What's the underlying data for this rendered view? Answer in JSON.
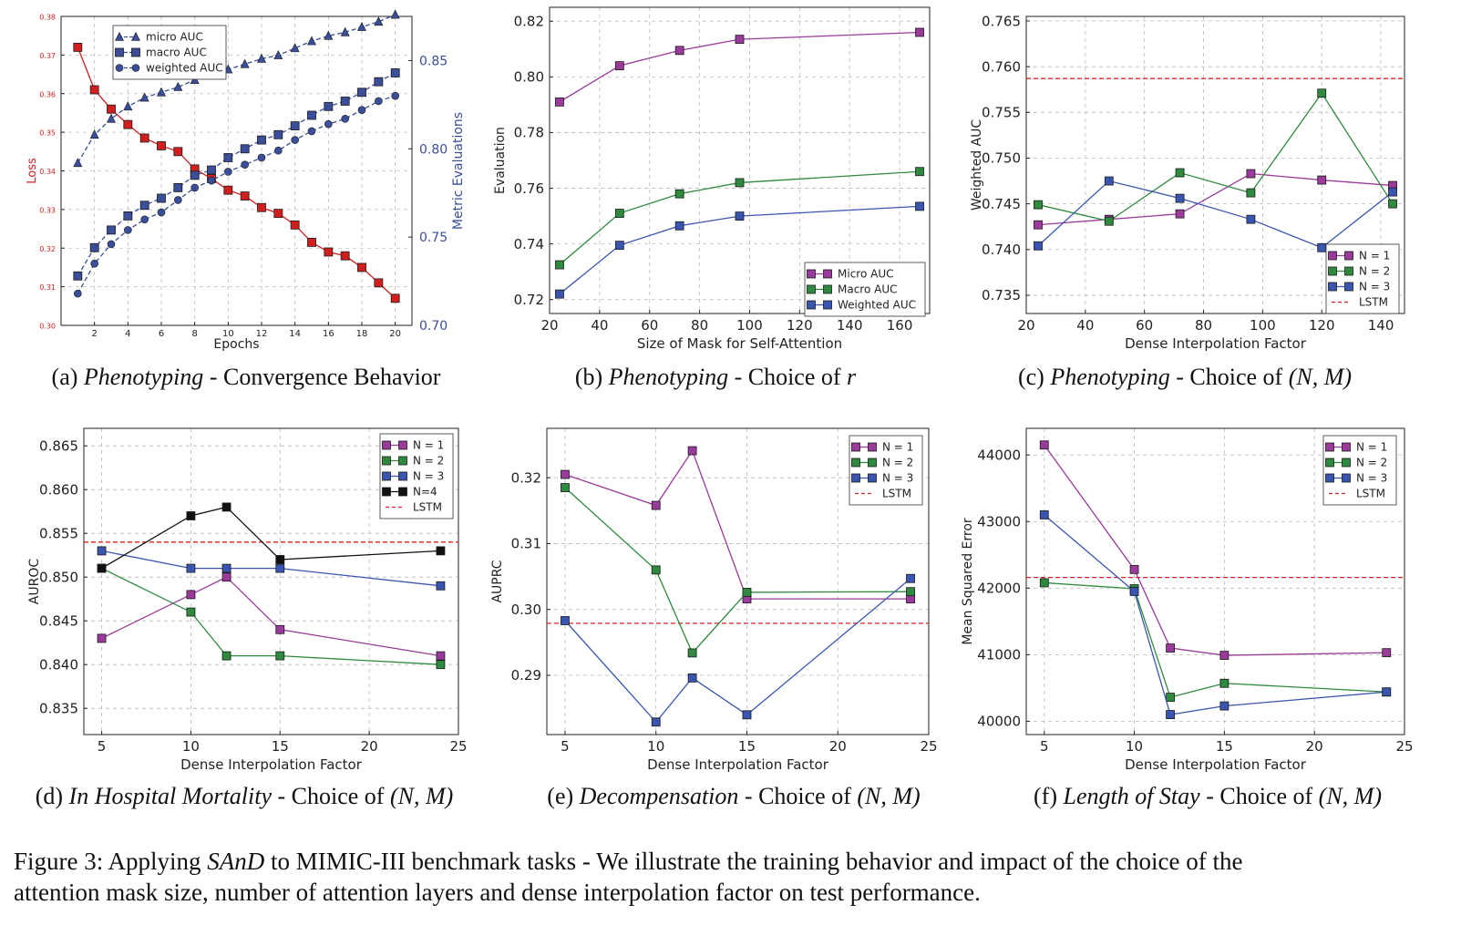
{
  "colors": {
    "loss": "#d11f1f",
    "metric": "#3a4e9a",
    "n1": "#9a3a9a",
    "n2": "#2f8a3f",
    "n3": "#3a55b0",
    "n4": "#111111",
    "lstm": "#e02020",
    "grid": "#bbbbbb"
  },
  "chart_data": [
    {
      "id": "a",
      "type": "line",
      "caption_label": "(a)",
      "caption_task": "Phenotyping",
      "caption_rest": "- Convergence Behavior",
      "xlabel": "Epochs",
      "ylabel": "Loss",
      "y2label": "Metric Evaluations",
      "xlim": [
        0,
        21
      ],
      "ylim": [
        0.3,
        0.38
      ],
      "y2lim": [
        0.7,
        0.875
      ],
      "xticks": [
        2,
        4,
        6,
        8,
        10,
        12,
        14,
        16,
        18,
        20
      ],
      "yticks": [
        0.3,
        0.31,
        0.32,
        0.33,
        0.34,
        0.35,
        0.36,
        0.37,
        0.38
      ],
      "y2ticks": [
        0.7,
        0.75,
        0.8,
        0.85
      ],
      "grid": true,
      "legend_position": "top-left",
      "series": [
        {
          "name": "Loss",
          "axis": "left",
          "color_key": "loss",
          "marker": "square",
          "style": "solid",
          "legend": false,
          "x": [
            1,
            2,
            3,
            4,
            5,
            6,
            7,
            8,
            9,
            10,
            11,
            12,
            13,
            14,
            15,
            16,
            17,
            18,
            19,
            20
          ],
          "y": [
            0.372,
            0.361,
            0.356,
            0.352,
            0.3485,
            0.3465,
            0.345,
            0.3405,
            0.338,
            0.335,
            0.3335,
            0.3305,
            0.329,
            0.326,
            0.3215,
            0.319,
            0.318,
            0.315,
            0.311,
            0.307
          ]
        },
        {
          "name": "micro AUC",
          "axis": "right",
          "color_key": "metric",
          "marker": "triangle",
          "style": "dashed",
          "legend": true,
          "x": [
            1,
            2,
            3,
            4,
            5,
            6,
            7,
            8,
            9,
            10,
            11,
            12,
            13,
            14,
            15,
            16,
            17,
            18,
            19,
            20
          ],
          "y": [
            0.792,
            0.808,
            0.817,
            0.824,
            0.829,
            0.832,
            0.835,
            0.839,
            0.842,
            0.845,
            0.848,
            0.851,
            0.853,
            0.857,
            0.861,
            0.864,
            0.866,
            0.869,
            0.872,
            0.876
          ]
        },
        {
          "name": "macro AUC",
          "axis": "right",
          "color_key": "metric",
          "marker": "square",
          "style": "dashed",
          "legend": true,
          "x": [
            1,
            2,
            3,
            4,
            5,
            6,
            7,
            8,
            9,
            10,
            11,
            12,
            13,
            14,
            15,
            16,
            17,
            18,
            19,
            20
          ],
          "y": [
            0.728,
            0.744,
            0.754,
            0.762,
            0.768,
            0.772,
            0.778,
            0.785,
            0.788,
            0.795,
            0.8,
            0.805,
            0.808,
            0.813,
            0.819,
            0.824,
            0.827,
            0.832,
            0.838,
            0.843
          ]
        },
        {
          "name": "weighted AUC",
          "axis": "right",
          "color_key": "metric",
          "marker": "circle",
          "style": "dashed",
          "legend": true,
          "x": [
            1,
            2,
            3,
            4,
            5,
            6,
            7,
            8,
            9,
            10,
            11,
            12,
            13,
            14,
            15,
            16,
            17,
            18,
            19,
            20
          ],
          "y": [
            0.718,
            0.735,
            0.746,
            0.754,
            0.76,
            0.764,
            0.771,
            0.778,
            0.782,
            0.787,
            0.791,
            0.795,
            0.799,
            0.805,
            0.81,
            0.814,
            0.817,
            0.822,
            0.827,
            0.83
          ]
        }
      ]
    },
    {
      "id": "b",
      "type": "line",
      "caption_label": "(b)",
      "caption_task": "Phenotyping",
      "caption_rest": "- Choice of",
      "caption_math": "r",
      "xlabel": "Size of Mask for Self-Attention",
      "ylabel": "Evaluation",
      "xlim": [
        20,
        172
      ],
      "ylim": [
        0.715,
        0.825
      ],
      "xticks": [
        20,
        40,
        60,
        80,
        100,
        120,
        140,
        160
      ],
      "yticks": [
        0.72,
        0.74,
        0.76,
        0.78,
        0.8,
        0.82
      ],
      "grid": true,
      "legend_position": "bottom-right",
      "series": [
        {
          "name": "Micro AUC",
          "color_key": "n1",
          "marker": "square",
          "style": "solid",
          "legend": true,
          "x": [
            24,
            48,
            72,
            96,
            168
          ],
          "y": [
            0.791,
            0.804,
            0.8095,
            0.8135,
            0.816
          ]
        },
        {
          "name": "Macro AUC",
          "color_key": "n2",
          "marker": "square",
          "style": "solid",
          "legend": true,
          "x": [
            24,
            48,
            72,
            96,
            168
          ],
          "y": [
            0.7325,
            0.751,
            0.758,
            0.762,
            0.766
          ]
        },
        {
          "name": "Weighted AUC",
          "color_key": "n3",
          "marker": "square",
          "style": "solid",
          "legend": true,
          "x": [
            24,
            48,
            72,
            96,
            168
          ],
          "y": [
            0.722,
            0.7395,
            0.7465,
            0.75,
            0.7535
          ]
        }
      ]
    },
    {
      "id": "c",
      "type": "line",
      "caption_label": "(c)",
      "caption_task": "Phenotyping",
      "caption_rest": "- Choice of",
      "caption_math": "(N, M)",
      "xlabel": "Dense Interpolation Factor",
      "ylabel": "Weighted AUC",
      "xlim": [
        20,
        148
      ],
      "ylim": [
        0.733,
        0.7655
      ],
      "xticks": [
        20,
        40,
        60,
        80,
        100,
        120,
        140
      ],
      "yticks": [
        0.735,
        0.74,
        0.745,
        0.75,
        0.755,
        0.76,
        0.765
      ],
      "grid": true,
      "legend_position": "bottom-right",
      "series": [
        {
          "name": "N = 1",
          "color_key": "n1",
          "marker": "square",
          "style": "solid",
          "legend": true,
          "x": [
            24,
            48,
            72,
            96,
            120,
            144
          ],
          "y": [
            0.7427,
            0.7433,
            0.7439,
            0.7483,
            0.7476,
            0.747
          ]
        },
        {
          "name": "N = 2",
          "color_key": "n2",
          "marker": "square",
          "style": "solid",
          "legend": true,
          "x": [
            24,
            48,
            72,
            96,
            120,
            144
          ],
          "y": [
            0.7449,
            0.7431,
            0.7484,
            0.7462,
            0.7571,
            0.745
          ]
        },
        {
          "name": "N = 3",
          "color_key": "n3",
          "marker": "square",
          "style": "solid",
          "legend": true,
          "x": [
            24,
            48,
            72,
            96,
            120,
            144
          ],
          "y": [
            0.7404,
            0.7475,
            0.7456,
            0.7433,
            0.7402,
            0.7463
          ]
        }
      ],
      "reference_line": {
        "name": "LSTM",
        "y": 0.7587,
        "color_key": "lstm"
      }
    },
    {
      "id": "d",
      "type": "line",
      "caption_label": "(d)",
      "caption_task": "In Hospital Mortality",
      "caption_rest": "- Choice of",
      "caption_math": "(N, M)",
      "xlabel": "Dense Interpolation Factor",
      "ylabel": "AUROC",
      "xlim": [
        4,
        25
      ],
      "ylim": [
        0.832,
        0.867
      ],
      "xticks": [
        5,
        10,
        15,
        20,
        25
      ],
      "yticks": [
        0.835,
        0.84,
        0.845,
        0.85,
        0.855,
        0.86,
        0.865
      ],
      "grid": true,
      "legend_position": "top-right",
      "series": [
        {
          "name": "N = 1",
          "color_key": "n1",
          "marker": "square",
          "style": "solid",
          "legend": true,
          "x": [
            5,
            10,
            12,
            15,
            24
          ],
          "y": [
            0.843,
            0.848,
            0.85,
            0.844,
            0.841
          ]
        },
        {
          "name": "N = 2",
          "color_key": "n2",
          "marker": "square",
          "style": "solid",
          "legend": true,
          "x": [
            5,
            10,
            12,
            15,
            24
          ],
          "y": [
            0.851,
            0.846,
            0.841,
            0.841,
            0.84
          ]
        },
        {
          "name": "N = 3",
          "color_key": "n3",
          "marker": "square",
          "style": "solid",
          "legend": true,
          "x": [
            5,
            10,
            12,
            15,
            24
          ],
          "y": [
            0.853,
            0.851,
            0.851,
            0.851,
            0.849
          ]
        },
        {
          "name": "N=4",
          "color_key": "n4",
          "marker": "square",
          "style": "solid",
          "legend": true,
          "x": [
            5,
            10,
            12,
            15,
            24
          ],
          "y": [
            0.851,
            0.857,
            0.858,
            0.852,
            0.853
          ]
        }
      ],
      "reference_line": {
        "name": "LSTM",
        "y": 0.854,
        "color_key": "lstm"
      }
    },
    {
      "id": "e",
      "type": "line",
      "caption_label": "(e)",
      "caption_task": "Decompensation",
      "caption_rest": "- Choice of",
      "caption_math": "(N, M)",
      "xlabel": "Dense Interpolation Factor",
      "ylabel": "AUPRC",
      "xlim": [
        4,
        25
      ],
      "ylim": [
        0.281,
        0.3275
      ],
      "xticks": [
        5,
        10,
        15,
        20,
        25
      ],
      "yticks": [
        0.29,
        0.3,
        0.31,
        0.32
      ],
      "grid": true,
      "legend_position": "top-right",
      "series": [
        {
          "name": "N = 1",
          "color_key": "n1",
          "marker": "square",
          "style": "solid",
          "legend": true,
          "x": [
            5,
            10,
            12,
            15,
            24
          ],
          "y": [
            0.3205,
            0.3158,
            0.3241,
            0.3016,
            0.3016
          ]
        },
        {
          "name": "N = 2",
          "color_key": "n2",
          "marker": "square",
          "style": "solid",
          "legend": true,
          "x": [
            5,
            10,
            12,
            15,
            24
          ],
          "y": [
            0.3185,
            0.306,
            0.2934,
            0.3026,
            0.3027
          ]
        },
        {
          "name": "N = 3",
          "color_key": "n3",
          "marker": "square",
          "style": "solid",
          "legend": true,
          "x": [
            5,
            10,
            12,
            15,
            24
          ],
          "y": [
            0.2983,
            0.2829,
            0.2896,
            0.284,
            0.3047
          ]
        }
      ],
      "reference_line": {
        "name": "LSTM",
        "y": 0.2979,
        "color_key": "lstm"
      }
    },
    {
      "id": "f",
      "type": "line",
      "caption_label": "(f)",
      "caption_task": "Length of Stay",
      "caption_rest": "- Choice of",
      "caption_math": "(N, M)",
      "xlabel": "Dense Interpolation Factor",
      "ylabel": "Mean Squared Error",
      "xlim": [
        4,
        25
      ],
      "ylim": [
        39800,
        44400
      ],
      "xticks": [
        5,
        10,
        15,
        20,
        25
      ],
      "yticks": [
        40000,
        41000,
        42000,
        43000,
        44000
      ],
      "grid": true,
      "legend_position": "top-right",
      "series": [
        {
          "name": "N = 1",
          "color_key": "n1",
          "marker": "square",
          "style": "solid",
          "legend": true,
          "x": [
            5,
            10,
            12,
            15,
            24
          ],
          "y": [
            44150,
            42280,
            41100,
            40990,
            41030
          ]
        },
        {
          "name": "N = 2",
          "color_key": "n2",
          "marker": "square",
          "style": "solid",
          "legend": true,
          "x": [
            5,
            10,
            12,
            15,
            24
          ],
          "y": [
            42080,
            41990,
            40360,
            40570,
            40440
          ]
        },
        {
          "name": "N = 3",
          "color_key": "n3",
          "marker": "square",
          "style": "solid",
          "legend": true,
          "x": [
            5,
            10,
            12,
            15,
            24
          ],
          "y": [
            43100,
            41950,
            40100,
            40230,
            40440
          ]
        }
      ],
      "reference_line": {
        "name": "LSTM",
        "y": 42160,
        "color_key": "lstm"
      }
    }
  ],
  "figure_caption": {
    "prefix": "Figure 3: Applying",
    "italic": "SAnD",
    "rest_line1": "to MIMIC-III benchmark tasks - We illustrate the training behavior and impact of the choice of the",
    "line2": "attention mask size, number of attention layers and dense interpolation factor on test performance."
  }
}
